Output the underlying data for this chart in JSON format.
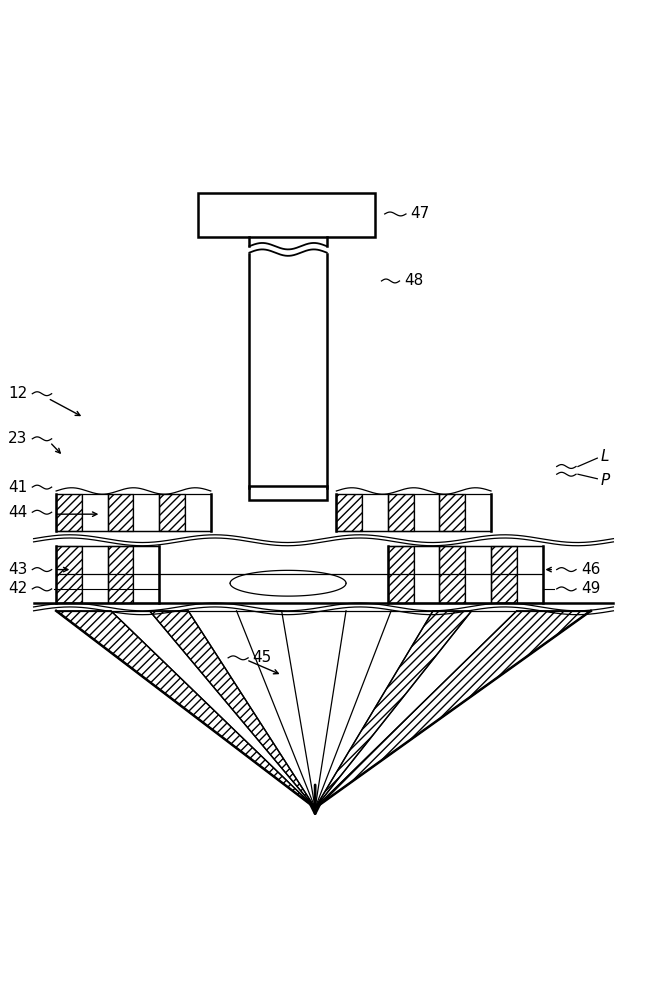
{
  "bg_color": "#ffffff",
  "line_color": "#000000",
  "fig_width": 6.47,
  "fig_height": 10.0,
  "dpi": 100
}
